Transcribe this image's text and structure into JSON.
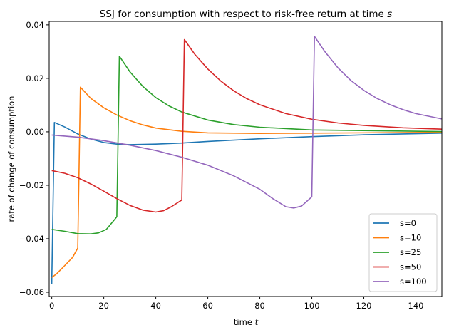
{
  "chart_data": {
    "type": "line",
    "title": "SSJ for consumption with respect to risk-free return at time ",
    "title_italic": "s",
    "xlabel": "time ",
    "xlabel_italic": "t",
    "ylabel": "rate of change of consumption",
    "xlim": [
      -1,
      150
    ],
    "ylim": [
      -0.0616,
      0.0413
    ],
    "xticks": [
      0,
      20,
      40,
      60,
      80,
      100,
      120,
      140
    ],
    "yticks": [
      -0.06,
      -0.04,
      -0.02,
      0.0,
      0.02,
      0.04
    ],
    "ytick_labels": [
      "−0.06",
      "−0.04",
      "−0.02",
      "0.00",
      "0.02",
      "0.04"
    ],
    "grid": false,
    "legend_position": "lower right",
    "series": [
      {
        "name": "s=0",
        "color": "#1f77b4",
        "points": [
          [
            0,
            -0.057
          ],
          [
            1,
            0.0035
          ],
          [
            5,
            0.0018
          ],
          [
            10,
            -0.0008
          ],
          [
            15,
            -0.0027
          ],
          [
            20,
            -0.004
          ],
          [
            25,
            -0.0046
          ],
          [
            30,
            -0.0048
          ],
          [
            40,
            -0.0046
          ],
          [
            50,
            -0.0042
          ],
          [
            60,
            -0.0036
          ],
          [
            80,
            -0.0026
          ],
          [
            100,
            -0.0018
          ],
          [
            120,
            -0.0011
          ],
          [
            150,
            -0.0005
          ]
        ]
      },
      {
        "name": "s=10",
        "color": "#ff7f0e",
        "points": [
          [
            0,
            -0.0545
          ],
          [
            2,
            -0.053
          ],
          [
            5,
            -0.05
          ],
          [
            8,
            -0.047
          ],
          [
            10,
            -0.0435
          ],
          [
            11,
            0.0167
          ],
          [
            15,
            0.0125
          ],
          [
            20,
            0.009
          ],
          [
            25,
            0.0063
          ],
          [
            30,
            0.0042
          ],
          [
            35,
            0.0026
          ],
          [
            40,
            0.0014
          ],
          [
            50,
            0.0002
          ],
          [
            60,
            -0.0004
          ],
          [
            80,
            -0.0006
          ],
          [
            100,
            -0.0005
          ],
          [
            150,
            -0.0002
          ]
        ]
      },
      {
        "name": "s=25",
        "color": "#2ca02c",
        "points": [
          [
            0,
            -0.0365
          ],
          [
            5,
            -0.0372
          ],
          [
            10,
            -0.0381
          ],
          [
            15,
            -0.0382
          ],
          [
            18,
            -0.0378
          ],
          [
            21,
            -0.0365
          ],
          [
            25,
            -0.0318
          ],
          [
            26,
            0.0283
          ],
          [
            30,
            0.0225
          ],
          [
            35,
            0.017
          ],
          [
            40,
            0.0128
          ],
          [
            45,
            0.0097
          ],
          [
            50,
            0.0074
          ],
          [
            60,
            0.0044
          ],
          [
            70,
            0.0027
          ],
          [
            80,
            0.0017
          ],
          [
            100,
            0.0007
          ],
          [
            150,
            0.0001
          ]
        ]
      },
      {
        "name": "s=50",
        "color": "#d62728",
        "points": [
          [
            0,
            -0.0145
          ],
          [
            5,
            -0.0155
          ],
          [
            10,
            -0.0172
          ],
          [
            15,
            -0.0195
          ],
          [
            20,
            -0.0222
          ],
          [
            25,
            -0.025
          ],
          [
            30,
            -0.0275
          ],
          [
            35,
            -0.0293
          ],
          [
            40,
            -0.03
          ],
          [
            43,
            -0.0295
          ],
          [
            46,
            -0.028
          ],
          [
            50,
            -0.0255
          ],
          [
            51,
            0.0345
          ],
          [
            55,
            0.029
          ],
          [
            60,
            0.0235
          ],
          [
            65,
            0.019
          ],
          [
            70,
            0.0153
          ],
          [
            75,
            0.0124
          ],
          [
            80,
            0.0101
          ],
          [
            90,
            0.0068
          ],
          [
            100,
            0.0047
          ],
          [
            110,
            0.0033
          ],
          [
            120,
            0.0024
          ],
          [
            135,
            0.0015
          ],
          [
            150,
            0.001
          ]
        ]
      },
      {
        "name": "s=100",
        "color": "#9467bd",
        "points": [
          [
            0,
            -0.0012
          ],
          [
            10,
            -0.002
          ],
          [
            20,
            -0.0033
          ],
          [
            30,
            -0.005
          ],
          [
            40,
            -0.007
          ],
          [
            50,
            -0.0095
          ],
          [
            60,
            -0.0125
          ],
          [
            70,
            -0.0165
          ],
          [
            80,
            -0.0215
          ],
          [
            85,
            -0.025
          ],
          [
            90,
            -0.028
          ],
          [
            93,
            -0.0285
          ],
          [
            96,
            -0.0278
          ],
          [
            100,
            -0.0243
          ],
          [
            101,
            0.0357
          ],
          [
            105,
            0.03
          ],
          [
            110,
            0.024
          ],
          [
            115,
            0.0192
          ],
          [
            120,
            0.0155
          ],
          [
            125,
            0.0125
          ],
          [
            130,
            0.0102
          ],
          [
            135,
            0.0083
          ],
          [
            140,
            0.0068
          ],
          [
            150,
            0.0048
          ]
        ]
      }
    ]
  }
}
